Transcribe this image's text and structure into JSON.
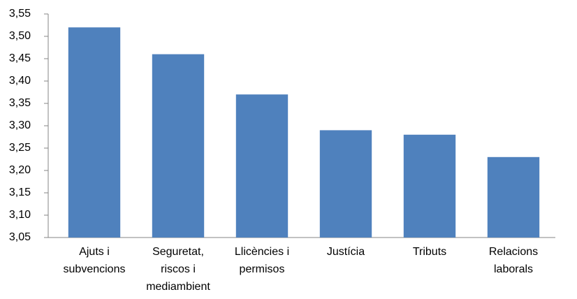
{
  "chart_data": {
    "type": "bar",
    "categories": [
      [
        "Ajuts i",
        "subvencions"
      ],
      [
        "Seguretat,",
        "riscos i",
        "mediambient"
      ],
      [
        "Llicències i",
        "permisos"
      ],
      [
        "Justícia"
      ],
      [
        "Tributs"
      ],
      [
        "Relacions",
        "laborals"
      ]
    ],
    "values": [
      3.52,
      3.46,
      3.37,
      3.29,
      3.28,
      3.23
    ],
    "color": "#4f81bd",
    "ylim": [
      3.05,
      3.55
    ],
    "yticks": [
      {
        "value": 3.05,
        "label": "3,05"
      },
      {
        "value": 3.1,
        "label": "3,10"
      },
      {
        "value": 3.15,
        "label": "3,15"
      },
      {
        "value": 3.2,
        "label": "3,20"
      },
      {
        "value": 3.25,
        "label": "3,25"
      },
      {
        "value": 3.3,
        "label": "3,30"
      },
      {
        "value": 3.35,
        "label": "3,35"
      },
      {
        "value": 3.4,
        "label": "3,40"
      },
      {
        "value": 3.45,
        "label": "3,45"
      },
      {
        "value": 3.5,
        "label": "3,50"
      },
      {
        "value": 3.55,
        "label": "3,55"
      }
    ],
    "grid": false
  }
}
